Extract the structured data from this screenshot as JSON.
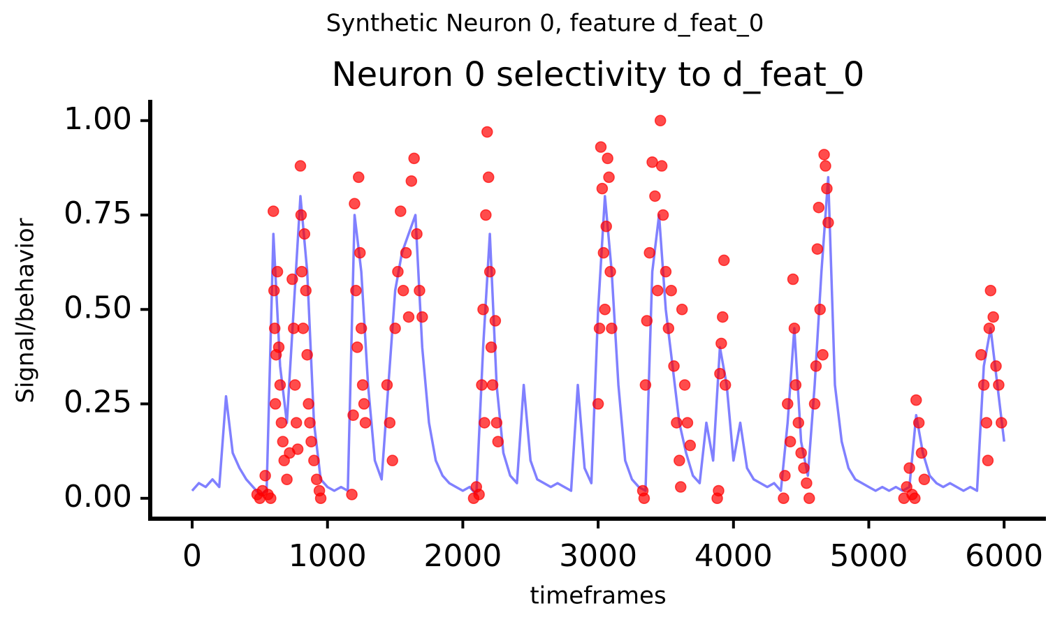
{
  "chart_data": {
    "type": "line",
    "suptitle": "Synthetic Neuron 0, feature d_feat_0",
    "title": "Neuron 0 selectivity to d_feat_0",
    "xlabel": "timeframes",
    "ylabel": "Signal/behavior",
    "xlim": [
      -310,
      6309
    ],
    "ylim": [
      -0.054,
      1.055
    ],
    "xticks": [
      0,
      1000,
      2000,
      3000,
      4000,
      5000,
      6000
    ],
    "yticks": [
      {
        "value": 0,
        "label": "0.00"
      },
      {
        "value": 0.25,
        "label": "0.25"
      },
      {
        "value": 0.5,
        "label": "0.50"
      },
      {
        "value": 0.75,
        "label": "0.75"
      },
      {
        "value": 1,
        "label": "1.00"
      }
    ],
    "series": [
      {
        "type": "line",
        "color": "#8080ff",
        "x": [
          0,
          50,
          100,
          150,
          200,
          250,
          300,
          350,
          400,
          450,
          500,
          550,
          600,
          650,
          700,
          750,
          800,
          850,
          900,
          950,
          1000,
          1050,
          1100,
          1150,
          1200,
          1250,
          1300,
          1350,
          1400,
          1450,
          1500,
          1550,
          1600,
          1650,
          1700,
          1750,
          1800,
          1850,
          1900,
          1950,
          2000,
          2050,
          2100,
          2150,
          2200,
          2250,
          2300,
          2350,
          2400,
          2450,
          2500,
          2550,
          2600,
          2650,
          2700,
          2750,
          2800,
          2850,
          2900,
          2950,
          3000,
          3050,
          3100,
          3150,
          3200,
          3250,
          3300,
          3350,
          3400,
          3450,
          3500,
          3550,
          3600,
          3650,
          3700,
          3750,
          3800,
          3850,
          3900,
          3950,
          4000,
          4050,
          4100,
          4150,
          4200,
          4250,
          4300,
          4350,
          4400,
          4450,
          4500,
          4550,
          4600,
          4650,
          4700,
          4750,
          4800,
          4850,
          4900,
          4950,
          5000,
          5050,
          5100,
          5150,
          5200,
          5250,
          5300,
          5350,
          5400,
          5450,
          5500,
          5550,
          5600,
          5650,
          5700,
          5750,
          5800,
          5850,
          5900,
          5950,
          6000
        ],
        "values": [
          0.02,
          0.04,
          0.03,
          0.05,
          0.03,
          0.27,
          0.12,
          0.08,
          0.05,
          0.03,
          0.01,
          0.02,
          0.7,
          0.35,
          0.2,
          0.5,
          0.8,
          0.6,
          0.2,
          0.05,
          0.03,
          0.02,
          0.03,
          0.02,
          0.75,
          0.6,
          0.3,
          0.1,
          0.05,
          0.3,
          0.55,
          0.65,
          0.7,
          0.75,
          0.4,
          0.2,
          0.1,
          0.06,
          0.04,
          0.03,
          0.02,
          0.03,
          0.01,
          0.4,
          0.7,
          0.3,
          0.12,
          0.06,
          0.04,
          0.3,
          0.1,
          0.05,
          0.04,
          0.03,
          0.04,
          0.03,
          0.02,
          0.3,
          0.08,
          0.04,
          0.5,
          0.8,
          0.6,
          0.3,
          0.1,
          0.05,
          0.03,
          0.02,
          0.6,
          0.75,
          0.5,
          0.35,
          0.2,
          0.12,
          0.06,
          0.04,
          0.2,
          0.1,
          0.4,
          0.3,
          0.1,
          0.2,
          0.08,
          0.05,
          0.04,
          0.03,
          0.04,
          0.02,
          0.2,
          0.45,
          0.15,
          0.06,
          0.3,
          0.6,
          0.85,
          0.3,
          0.15,
          0.08,
          0.05,
          0.04,
          0.03,
          0.02,
          0.03,
          0.02,
          0.03,
          0.02,
          0.03,
          0.22,
          0.12,
          0.06,
          0.04,
          0.03,
          0.04,
          0.03,
          0.02,
          0.03,
          0.02,
          0.35,
          0.45,
          0.3,
          0.15
        ]
      },
      {
        "type": "scatter",
        "color": "#ff0000",
        "x": [
          480,
          500,
          520,
          540,
          560,
          580,
          600,
          605,
          610,
          615,
          620,
          630,
          640,
          650,
          660,
          670,
          680,
          700,
          720,
          740,
          750,
          760,
          770,
          780,
          800,
          805,
          810,
          820,
          830,
          840,
          850,
          860,
          870,
          880,
          900,
          920,
          940,
          950,
          1180,
          1190,
          1200,
          1210,
          1220,
          1230,
          1240,
          1250,
          1260,
          1270,
          1280,
          1440,
          1460,
          1480,
          1500,
          1520,
          1540,
          1560,
          1580,
          1600,
          1620,
          1640,
          1660,
          1680,
          1700,
          2080,
          2100,
          2120,
          2140,
          2150,
          2160,
          2170,
          2180,
          2190,
          2200,
          2210,
          2220,
          2240,
          2250,
          2260,
          3000,
          3010,
          3020,
          3030,
          3040,
          3050,
          3060,
          3070,
          3080,
          3090,
          3100,
          3330,
          3340,
          3350,
          3360,
          3380,
          3400,
          3420,
          3440,
          3460,
          3470,
          3480,
          3500,
          3520,
          3540,
          3560,
          3580,
          3600,
          3610,
          3620,
          3640,
          3660,
          3680,
          3880,
          3890,
          3900,
          3910,
          3920,
          3930,
          3940,
          4370,
          4380,
          4400,
          4420,
          4440,
          4450,
          4460,
          4480,
          4500,
          4520,
          4540,
          4560,
          4600,
          4610,
          4620,
          4630,
          4640,
          4660,
          4670,
          4680,
          4690,
          4700,
          5260,
          5280,
          5300,
          5320,
          5340,
          5350,
          5370,
          5390,
          5410,
          5830,
          5850,
          5870,
          5880,
          5890,
          5900,
          5920,
          5940,
          5960,
          5980
        ],
        "values": [
          0.01,
          0.0,
          0.02,
          0.06,
          0.01,
          0.0,
          0.76,
          0.55,
          0.45,
          0.25,
          0.38,
          0.6,
          0.4,
          0.3,
          0.2,
          0.15,
          0.1,
          0.05,
          0.12,
          0.58,
          0.45,
          0.3,
          0.2,
          0.13,
          0.88,
          0.75,
          0.6,
          0.45,
          0.7,
          0.55,
          0.38,
          0.25,
          0.2,
          0.15,
          0.1,
          0.05,
          0.02,
          0.0,
          0.01,
          0.22,
          0.78,
          0.55,
          0.4,
          0.85,
          0.65,
          0.45,
          0.3,
          0.25,
          0.2,
          0.3,
          0.2,
          0.1,
          0.45,
          0.6,
          0.76,
          0.55,
          0.65,
          0.48,
          0.84,
          0.9,
          0.7,
          0.55,
          0.48,
          0.0,
          0.03,
          0.01,
          0.3,
          0.5,
          0.2,
          0.75,
          0.97,
          0.85,
          0.6,
          0.4,
          0.3,
          0.47,
          0.2,
          0.15,
          0.25,
          0.45,
          0.93,
          0.82,
          0.65,
          0.5,
          0.72,
          0.9,
          0.85,
          0.6,
          0.45,
          0.02,
          0.0,
          0.3,
          0.47,
          0.65,
          0.89,
          0.8,
          0.55,
          1.0,
          0.88,
          0.75,
          0.6,
          0.45,
          0.55,
          0.35,
          0.2,
          0.1,
          0.03,
          0.5,
          0.3,
          0.2,
          0.14,
          0.0,
          0.02,
          0.33,
          0.41,
          0.48,
          0.63,
          0.3,
          0.0,
          0.06,
          0.25,
          0.15,
          0.58,
          0.45,
          0.3,
          0.2,
          0.12,
          0.08,
          0.04,
          0.0,
          0.25,
          0.35,
          0.66,
          0.77,
          0.5,
          0.38,
          0.91,
          0.88,
          0.82,
          0.73,
          0.0,
          0.03,
          0.08,
          0.01,
          0.0,
          0.26,
          0.2,
          0.12,
          0.05,
          0.38,
          0.3,
          0.2,
          0.1,
          0.45,
          0.55,
          0.48,
          0.35,
          0.3,
          0.2
        ]
      }
    ]
  }
}
